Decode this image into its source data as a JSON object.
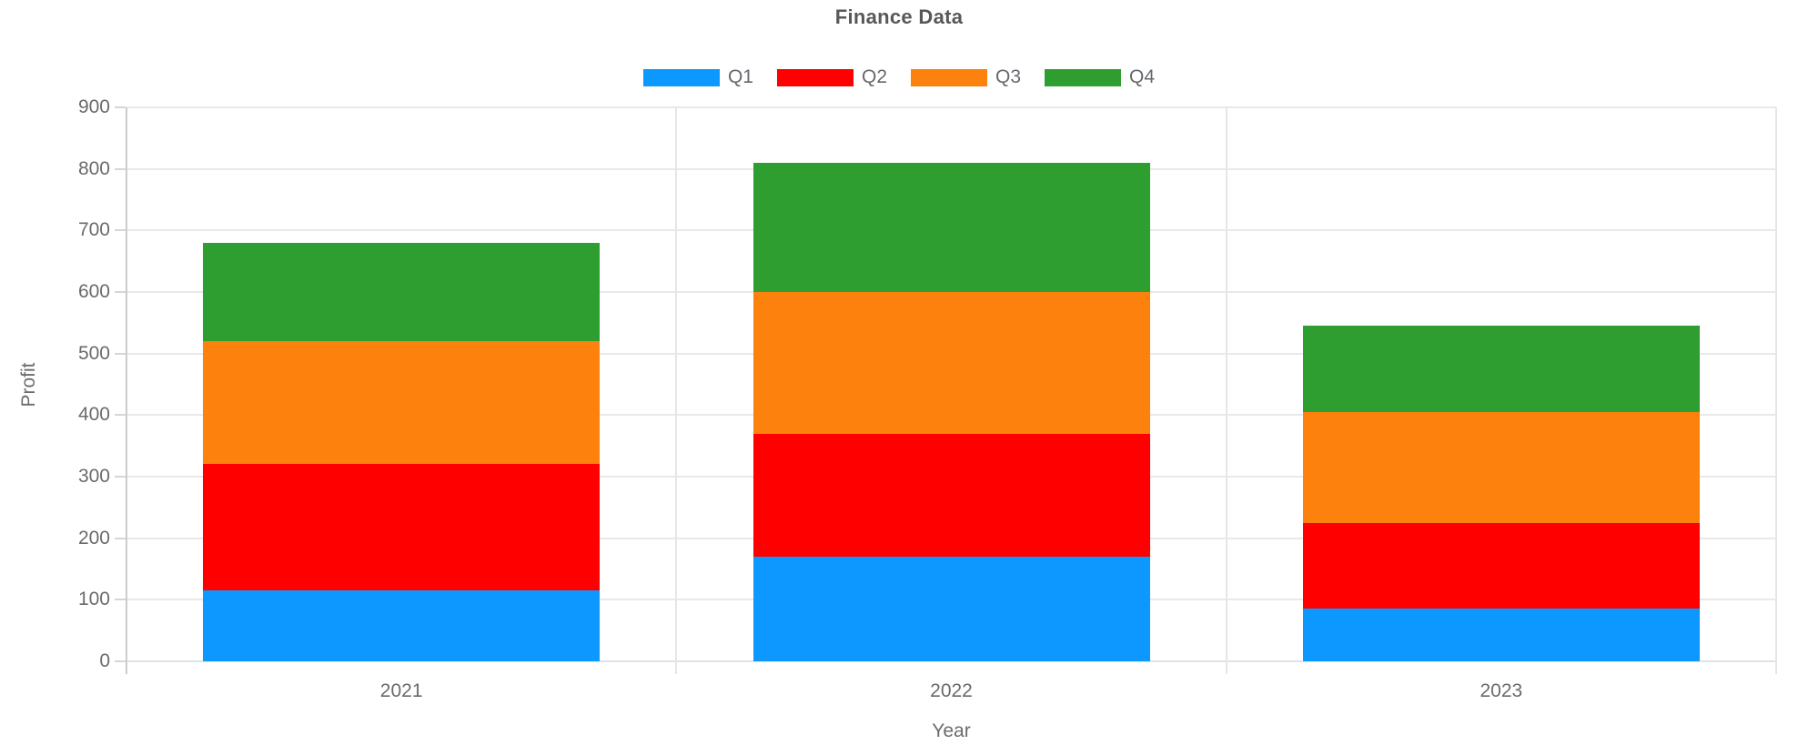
{
  "chart_data": {
    "type": "bar",
    "stacked": true,
    "title": "Finance Data",
    "xlabel": "Year",
    "ylabel": "Profit",
    "categories": [
      "2021",
      "2022",
      "2023"
    ],
    "series": [
      {
        "name": "Q1",
        "color": "#0D98FF",
        "values": [
          115,
          170,
          85
        ]
      },
      {
        "name": "Q2",
        "color": "#FF0000",
        "values": [
          205,
          200,
          140
        ]
      },
      {
        "name": "Q3",
        "color": "#FC820D",
        "values": [
          200,
          230,
          180
        ]
      },
      {
        "name": "Q4",
        "color": "#2E9E30",
        "values": [
          160,
          210,
          140
        ]
      }
    ],
    "stack_totals": [
      680,
      810,
      545
    ],
    "ylim": [
      0,
      900
    ],
    "ytick_step": 100,
    "yticks": [
      0,
      100,
      200,
      300,
      400,
      500,
      600,
      700,
      800,
      900
    ],
    "grid": true,
    "legend_position": "top"
  }
}
